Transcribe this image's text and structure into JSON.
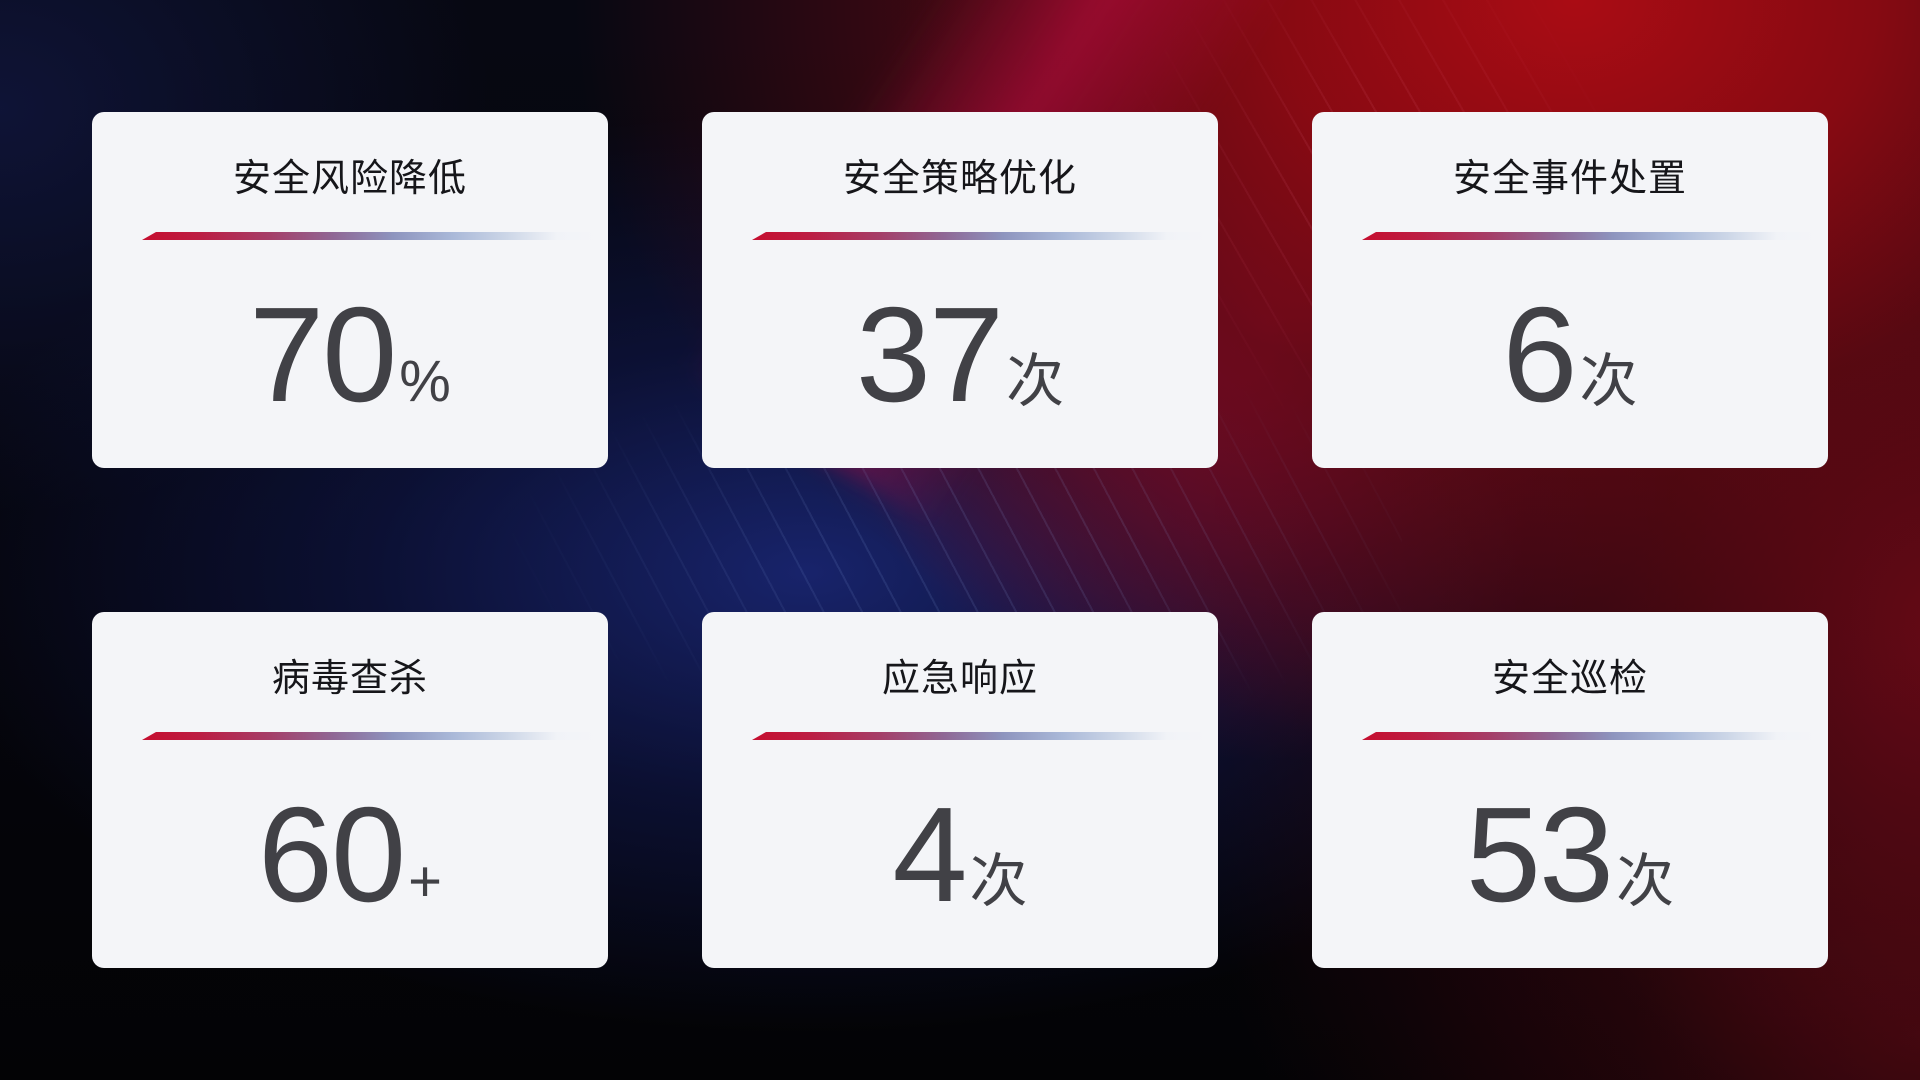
{
  "page": {
    "kind": "security-operations-stats-dashboard"
  },
  "cards": [
    {
      "title": "安全风险降低",
      "value": "70",
      "suffix": "%"
    },
    {
      "title": "安全策略优化",
      "value": "37",
      "suffix": "次"
    },
    {
      "title": "安全事件处置",
      "value": "6",
      "suffix": "次"
    },
    {
      "title": "病毒查杀",
      "value": "60",
      "suffix": "+"
    },
    {
      "title": "应急响应",
      "value": "4",
      "suffix": "次"
    },
    {
      "title": "安全巡检",
      "value": "53",
      "suffix": "次"
    }
  ],
  "colors": {
    "card_background": "#f4f5f8",
    "title_text": "#16161a",
    "value_text": "#414146",
    "divider_gradient_start": "#c50e2f",
    "divider_gradient_mid": "#8d94be",
    "divider_gradient_end": "#ccd6e7",
    "background_red": "#a80c13",
    "background_crimson_beam": "#bc0c3e",
    "background_navy": "#192570",
    "background_dark": "#05050c"
  }
}
